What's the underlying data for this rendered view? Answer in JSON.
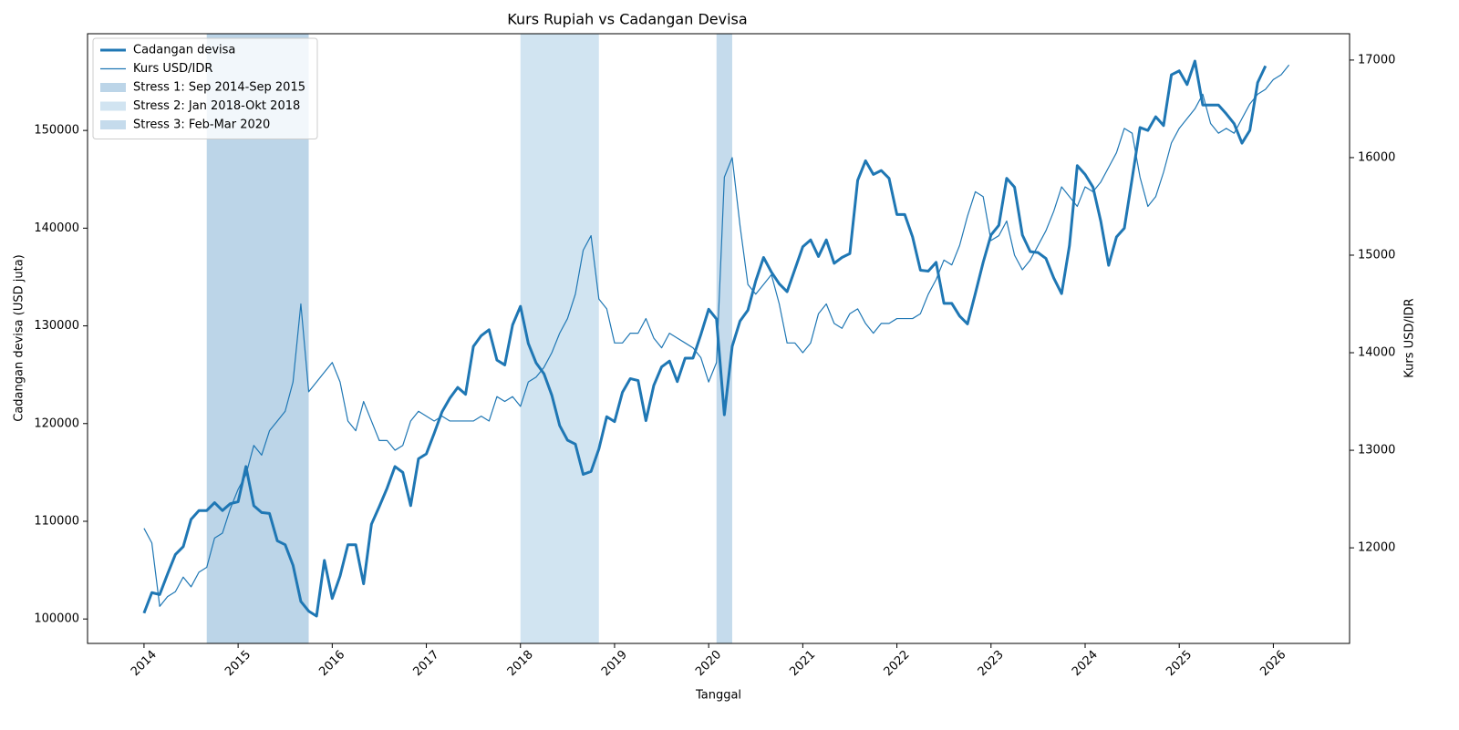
{
  "chart_data": {
    "type": "line",
    "title": "Kurs Rupiah vs Cadangan Devisa",
    "xlabel": "Tanggal",
    "ylabel": "Cadangan devisa (USD juta)",
    "y2label": "Kurs USD/IDR",
    "legend": "upper left",
    "xlim": [
      2013.4,
      2026.81
    ],
    "xticks": [
      2014,
      2015,
      2016,
      2017,
      2018,
      2019,
      2020,
      2021,
      2022,
      2023,
      2024,
      2025,
      2026
    ],
    "ylim": [
      97500,
      159900
    ],
    "yticks": [
      100000,
      110000,
      120000,
      130000,
      140000,
      150000
    ],
    "y2lim": [
      11020,
      17270
    ],
    "y2ticks": [
      12000,
      13000,
      14000,
      15000,
      16000,
      17000
    ],
    "bands": [
      {
        "name": "Stress 1: Sep 2014-Sep 2015",
        "start": "2014-09",
        "end": "2015-10",
        "color": "#bcd5e8"
      },
      {
        "name": "Stress 2: Jan 2018-Okt 2018",
        "start": "2018-01",
        "end": "2018-11",
        "color": "#d1e4f1"
      },
      {
        "name": "Stress 3: Feb-Mar 2020",
        "start": "2020-02",
        "end": "2020-04",
        "color": "#c5dbec"
      }
    ],
    "series": [
      {
        "name": "Cadangan devisa",
        "color": "#1f77b4",
        "width": 3,
        "axis": "y",
        "x": [
          "2014-01",
          "2014-02",
          "2014-03",
          "2014-04",
          "2014-05",
          "2014-06",
          "2014-07",
          "2014-08",
          "2014-09",
          "2014-10",
          "2014-11",
          "2014-12",
          "2015-01",
          "2015-02",
          "2015-03",
          "2015-04",
          "2015-05",
          "2015-06",
          "2015-07",
          "2015-08",
          "2015-09",
          "2015-10",
          "2015-11",
          "2015-12",
          "2016-01",
          "2016-02",
          "2016-03",
          "2016-04",
          "2016-05",
          "2016-06",
          "2016-07",
          "2016-08",
          "2016-09",
          "2016-10",
          "2016-11",
          "2016-12",
          "2017-01",
          "2017-02",
          "2017-03",
          "2017-04",
          "2017-05",
          "2017-06",
          "2017-07",
          "2017-08",
          "2017-09",
          "2017-10",
          "2017-11",
          "2017-12",
          "2018-01",
          "2018-02",
          "2018-03",
          "2018-04",
          "2018-05",
          "2018-06",
          "2018-07",
          "2018-08",
          "2018-09",
          "2018-10",
          "2018-11",
          "2018-12",
          "2019-01",
          "2019-02",
          "2019-03",
          "2019-04",
          "2019-05",
          "2019-06",
          "2019-07",
          "2019-08",
          "2019-09",
          "2019-10",
          "2019-11",
          "2019-12",
          "2020-01",
          "2020-02",
          "2020-03",
          "2020-04",
          "2020-05",
          "2020-06",
          "2020-07",
          "2020-08",
          "2020-09",
          "2020-10",
          "2020-11",
          "2020-12",
          "2021-01",
          "2021-02",
          "2021-03",
          "2021-04",
          "2021-05",
          "2021-06",
          "2021-07",
          "2021-08",
          "2021-09",
          "2021-10",
          "2021-11",
          "2021-12",
          "2022-01",
          "2022-02",
          "2022-03",
          "2022-04",
          "2022-05",
          "2022-06",
          "2022-07",
          "2022-08",
          "2022-09",
          "2022-10",
          "2022-11",
          "2022-12",
          "2023-01",
          "2023-02",
          "2023-03",
          "2023-04",
          "2023-05",
          "2023-06",
          "2023-07",
          "2023-08",
          "2023-09",
          "2023-10",
          "2023-11",
          "2023-12",
          "2024-01",
          "2024-02",
          "2024-03",
          "2024-04",
          "2024-05",
          "2024-06",
          "2024-07",
          "2024-08",
          "2024-09",
          "2024-10",
          "2024-11",
          "2024-12",
          "2025-01",
          "2025-02",
          "2025-03",
          "2025-04",
          "2025-05",
          "2025-06",
          "2025-07",
          "2025-08",
          "2025-09",
          "2025-10",
          "2025-11",
          "2025-12"
        ],
        "values": [
          100600,
          102700,
          102500,
          104600,
          106600,
          107400,
          110200,
          111100,
          111100,
          111900,
          111100,
          111800,
          112000,
          115600,
          111600,
          110900,
          110800,
          108000,
          107600,
          105500,
          101800,
          100800,
          100300,
          106000,
          102100,
          104400,
          107600,
          107600,
          103600,
          109700,
          111500,
          113400,
          115600,
          115000,
          111600,
          116400,
          116900,
          119000,
          121200,
          122600,
          123700,
          123000,
          127900,
          129000,
          129600,
          126500,
          126000,
          130100,
          132000,
          128200,
          126200,
          125100,
          122900,
          119800,
          118300,
          117900,
          114800,
          115100,
          117400,
          120700,
          120200,
          123200,
          124600,
          124400,
          120300,
          123900,
          125800,
          126400,
          124300,
          126700,
          126700,
          129100,
          131700,
          130700,
          120900,
          127900,
          130500,
          131600,
          134600,
          137000,
          135500,
          134300,
          133500,
          135800,
          138100,
          138800,
          137100,
          138800,
          136400,
          137000,
          137400,
          144900,
          146900,
          145500,
          145900,
          145100,
          141400,
          141400,
          139100,
          135700,
          135600,
          136500,
          132300,
          132300,
          131000,
          130200,
          133300,
          136500,
          139300,
          140300,
          145100,
          144200,
          139300,
          137600,
          137500,
          136900,
          134900,
          133300,
          138200,
          146400,
          145500,
          144200,
          140700,
          136200,
          139100,
          140000,
          145100,
          150300,
          150000,
          151400,
          150500,
          155700,
          156100,
          154700,
          157100,
          152600,
          152600,
          152600,
          151700,
          150700,
          148700,
          150000,
          154900,
          156600
        ]
      },
      {
        "name": "Kurs USD/IDR",
        "color": "#1f77b4",
        "width": 1.2,
        "axis": "y2",
        "x": [
          "2014-01",
          "2014-02",
          "2014-03",
          "2014-04",
          "2014-05",
          "2014-06",
          "2014-07",
          "2014-08",
          "2014-09",
          "2014-10",
          "2014-11",
          "2014-12",
          "2015-01",
          "2015-02",
          "2015-03",
          "2015-04",
          "2015-05",
          "2015-06",
          "2015-07",
          "2015-08",
          "2015-09",
          "2015-10",
          "2015-11",
          "2015-12",
          "2016-01",
          "2016-02",
          "2016-03",
          "2016-04",
          "2016-05",
          "2016-06",
          "2016-07",
          "2016-08",
          "2016-09",
          "2016-10",
          "2016-11",
          "2016-12",
          "2017-01",
          "2017-02",
          "2017-03",
          "2017-04",
          "2017-05",
          "2017-06",
          "2017-07",
          "2017-08",
          "2017-09",
          "2017-10",
          "2017-11",
          "2017-12",
          "2018-01",
          "2018-02",
          "2018-03",
          "2018-04",
          "2018-05",
          "2018-06",
          "2018-07",
          "2018-08",
          "2018-09",
          "2018-10",
          "2018-11",
          "2018-12",
          "2019-01",
          "2019-02",
          "2019-03",
          "2019-04",
          "2019-05",
          "2019-06",
          "2019-07",
          "2019-08",
          "2019-09",
          "2019-10",
          "2019-11",
          "2019-12",
          "2020-01",
          "2020-02",
          "2020-03",
          "2020-04",
          "2020-05",
          "2020-06",
          "2020-07",
          "2020-08",
          "2020-09",
          "2020-10",
          "2020-11",
          "2020-12",
          "2021-01",
          "2021-02",
          "2021-03",
          "2021-04",
          "2021-05",
          "2021-06",
          "2021-07",
          "2021-08",
          "2021-09",
          "2021-10",
          "2021-11",
          "2021-12",
          "2022-01",
          "2022-02",
          "2022-03",
          "2022-04",
          "2022-05",
          "2022-06",
          "2022-07",
          "2022-08",
          "2022-09",
          "2022-10",
          "2022-11",
          "2022-12",
          "2023-01",
          "2023-02",
          "2023-03",
          "2023-04",
          "2023-05",
          "2023-06",
          "2023-07",
          "2023-08",
          "2023-09",
          "2023-10",
          "2023-11",
          "2023-12",
          "2024-01",
          "2024-02",
          "2024-03",
          "2024-04",
          "2024-05",
          "2024-06",
          "2024-07",
          "2024-08",
          "2024-09",
          "2024-10",
          "2024-11",
          "2024-12",
          "2025-01",
          "2025-02",
          "2025-03",
          "2025-04",
          "2025-05",
          "2025-06",
          "2025-07",
          "2025-08",
          "2025-09",
          "2025-10",
          "2025-11",
          "2025-12",
          "2026-01",
          "2026-02",
          "2026-03"
        ],
        "values": [
          12200,
          12050,
          11400,
          11500,
          11550,
          11700,
          11600,
          11750,
          11800,
          12100,
          12150,
          12400,
          12600,
          12750,
          13050,
          12950,
          13200,
          13300,
          13400,
          13700,
          14500,
          13600,
          13700,
          13800,
          13900,
          13700,
          13300,
          13200,
          13500,
          13300,
          13100,
          13100,
          13000,
          13050,
          13300,
          13400,
          13350,
          13300,
          13350,
          13300,
          13300,
          13300,
          13300,
          13350,
          13300,
          13550,
          13500,
          13550,
          13450,
          13700,
          13750,
          13850,
          14000,
          14200,
          14350,
          14600,
          15050,
          15200,
          14550,
          14450,
          14100,
          14100,
          14200,
          14200,
          14350,
          14150,
          14050,
          14200,
          14150,
          14100,
          14050,
          13950,
          13700,
          13900,
          15800,
          16000,
          15300,
          14700,
          14600,
          14700,
          14800,
          14500,
          14100,
          14100,
          14000,
          14100,
          14400,
          14500,
          14300,
          14250,
          14400,
          14450,
          14300,
          14200,
          14300,
          14300,
          14350,
          14350,
          14350,
          14400,
          14600,
          14750,
          14950,
          14900,
          15100,
          15400,
          15650,
          15600,
          15150,
          15200,
          15350,
          15000,
          14850,
          14950,
          15100,
          15250,
          15450,
          15700,
          15600,
          15500,
          15700,
          15650,
          15750,
          15900,
          16050,
          16300,
          16250,
          15800,
          15500,
          15600,
          15850,
          16150,
          16300,
          16400,
          16500,
          16650,
          16350,
          16250,
          16300,
          16250,
          16400,
          16550,
          16650,
          16700,
          16800,
          16850,
          16950
        ]
      }
    ]
  }
}
